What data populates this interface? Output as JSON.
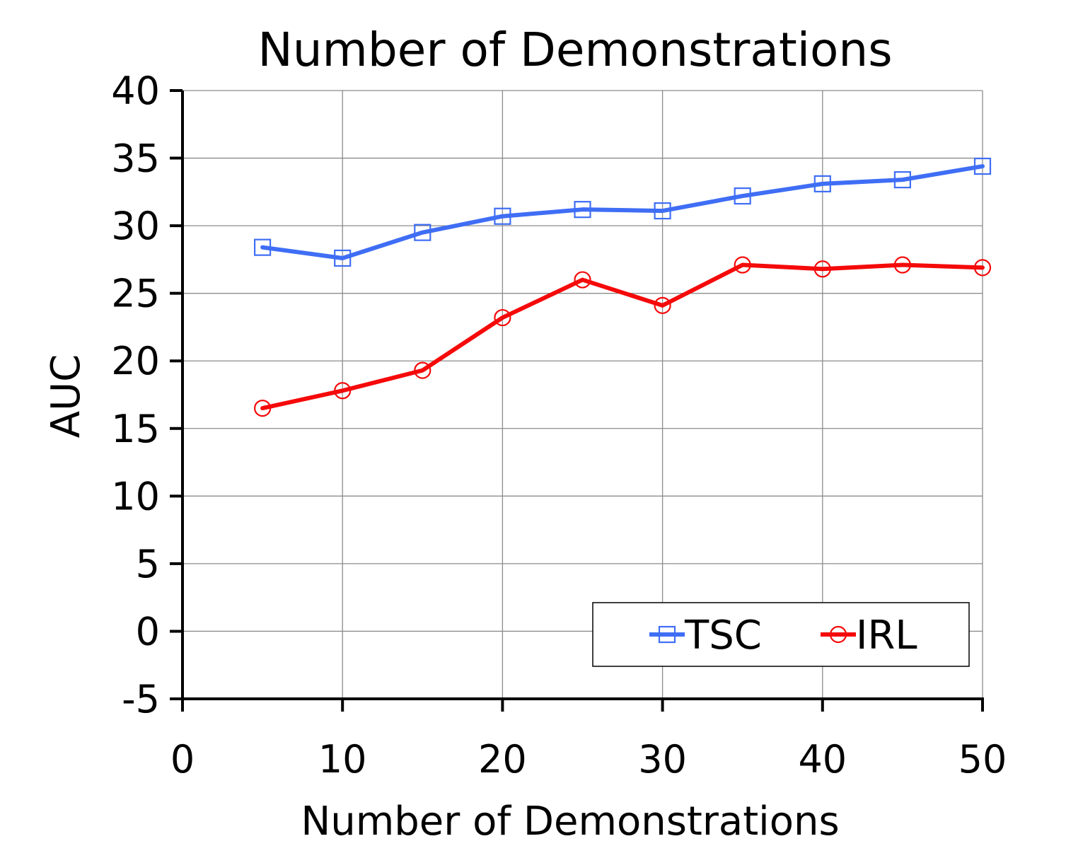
{
  "chart_data": {
    "type": "line",
    "title": "Number of Demonstrations",
    "xlabel": "Number of Demonstrations",
    "ylabel": "AUC",
    "x": [
      5,
      10,
      15,
      20,
      25,
      30,
      35,
      40,
      45,
      50
    ],
    "xlim": [
      0,
      50
    ],
    "ylim": [
      -5,
      40
    ],
    "xticks": [
      0,
      10,
      20,
      30,
      40,
      50
    ],
    "yticks": [
      -5,
      0,
      5,
      10,
      15,
      20,
      25,
      30,
      35,
      40
    ],
    "xtick_labels": [
      "0",
      "10",
      "20",
      "30",
      "40",
      "50"
    ],
    "ytick_labels": [
      "-5",
      "0",
      "5",
      "10",
      "15",
      "20",
      "25",
      "30",
      "35",
      "40"
    ],
    "grid": true,
    "legend_position": "bottom-right",
    "series": [
      {
        "name": "TSC",
        "color": "#3f6ef5",
        "marker": "square",
        "values": [
          28.4,
          27.6,
          29.5,
          30.7,
          31.2,
          31.1,
          32.2,
          33.1,
          33.4,
          34.4
        ]
      },
      {
        "name": "IRL",
        "color": "#f50a0a",
        "marker": "circle",
        "values": [
          16.5,
          17.8,
          19.3,
          23.2,
          26.0,
          24.1,
          27.1,
          26.8,
          27.1,
          26.9
        ]
      }
    ]
  }
}
